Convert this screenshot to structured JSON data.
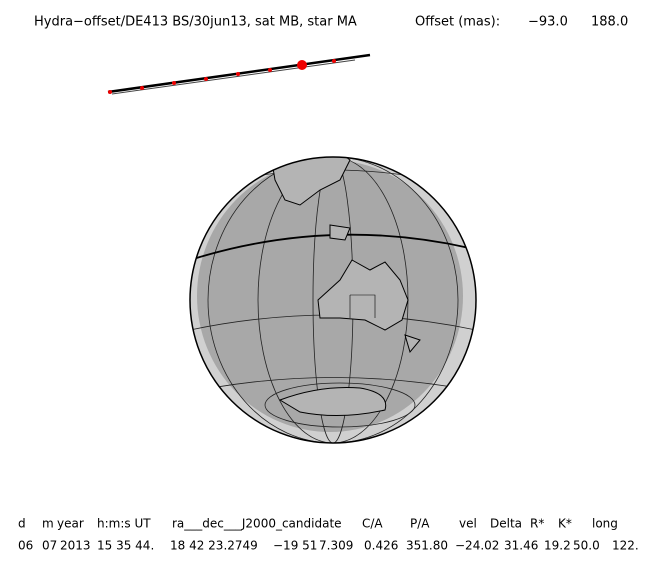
{
  "header": {
    "title": "Hydra−offset/DE413 BS/30jun13, sat MB, star MA",
    "offset_label": "Offset (mas):",
    "offset_x": "−93.0",
    "offset_y": "188.0"
  },
  "table": {
    "headers": [
      "d",
      "m",
      "year",
      "h:m:s UT",
      "ra___dec___J2000_candidate",
      "C/A",
      "P/A",
      "vel",
      "Delta",
      "R*",
      "K*",
      "long"
    ],
    "values": [
      "06",
      "07",
      "2013",
      "15 35 44.",
      "18 42 23.2749",
      "−19 51",
      "7.309",
      "0.426",
      "351.80",
      "−24.02",
      "31.46",
      "19.2",
      "50.0",
      "122."
    ]
  }
}
